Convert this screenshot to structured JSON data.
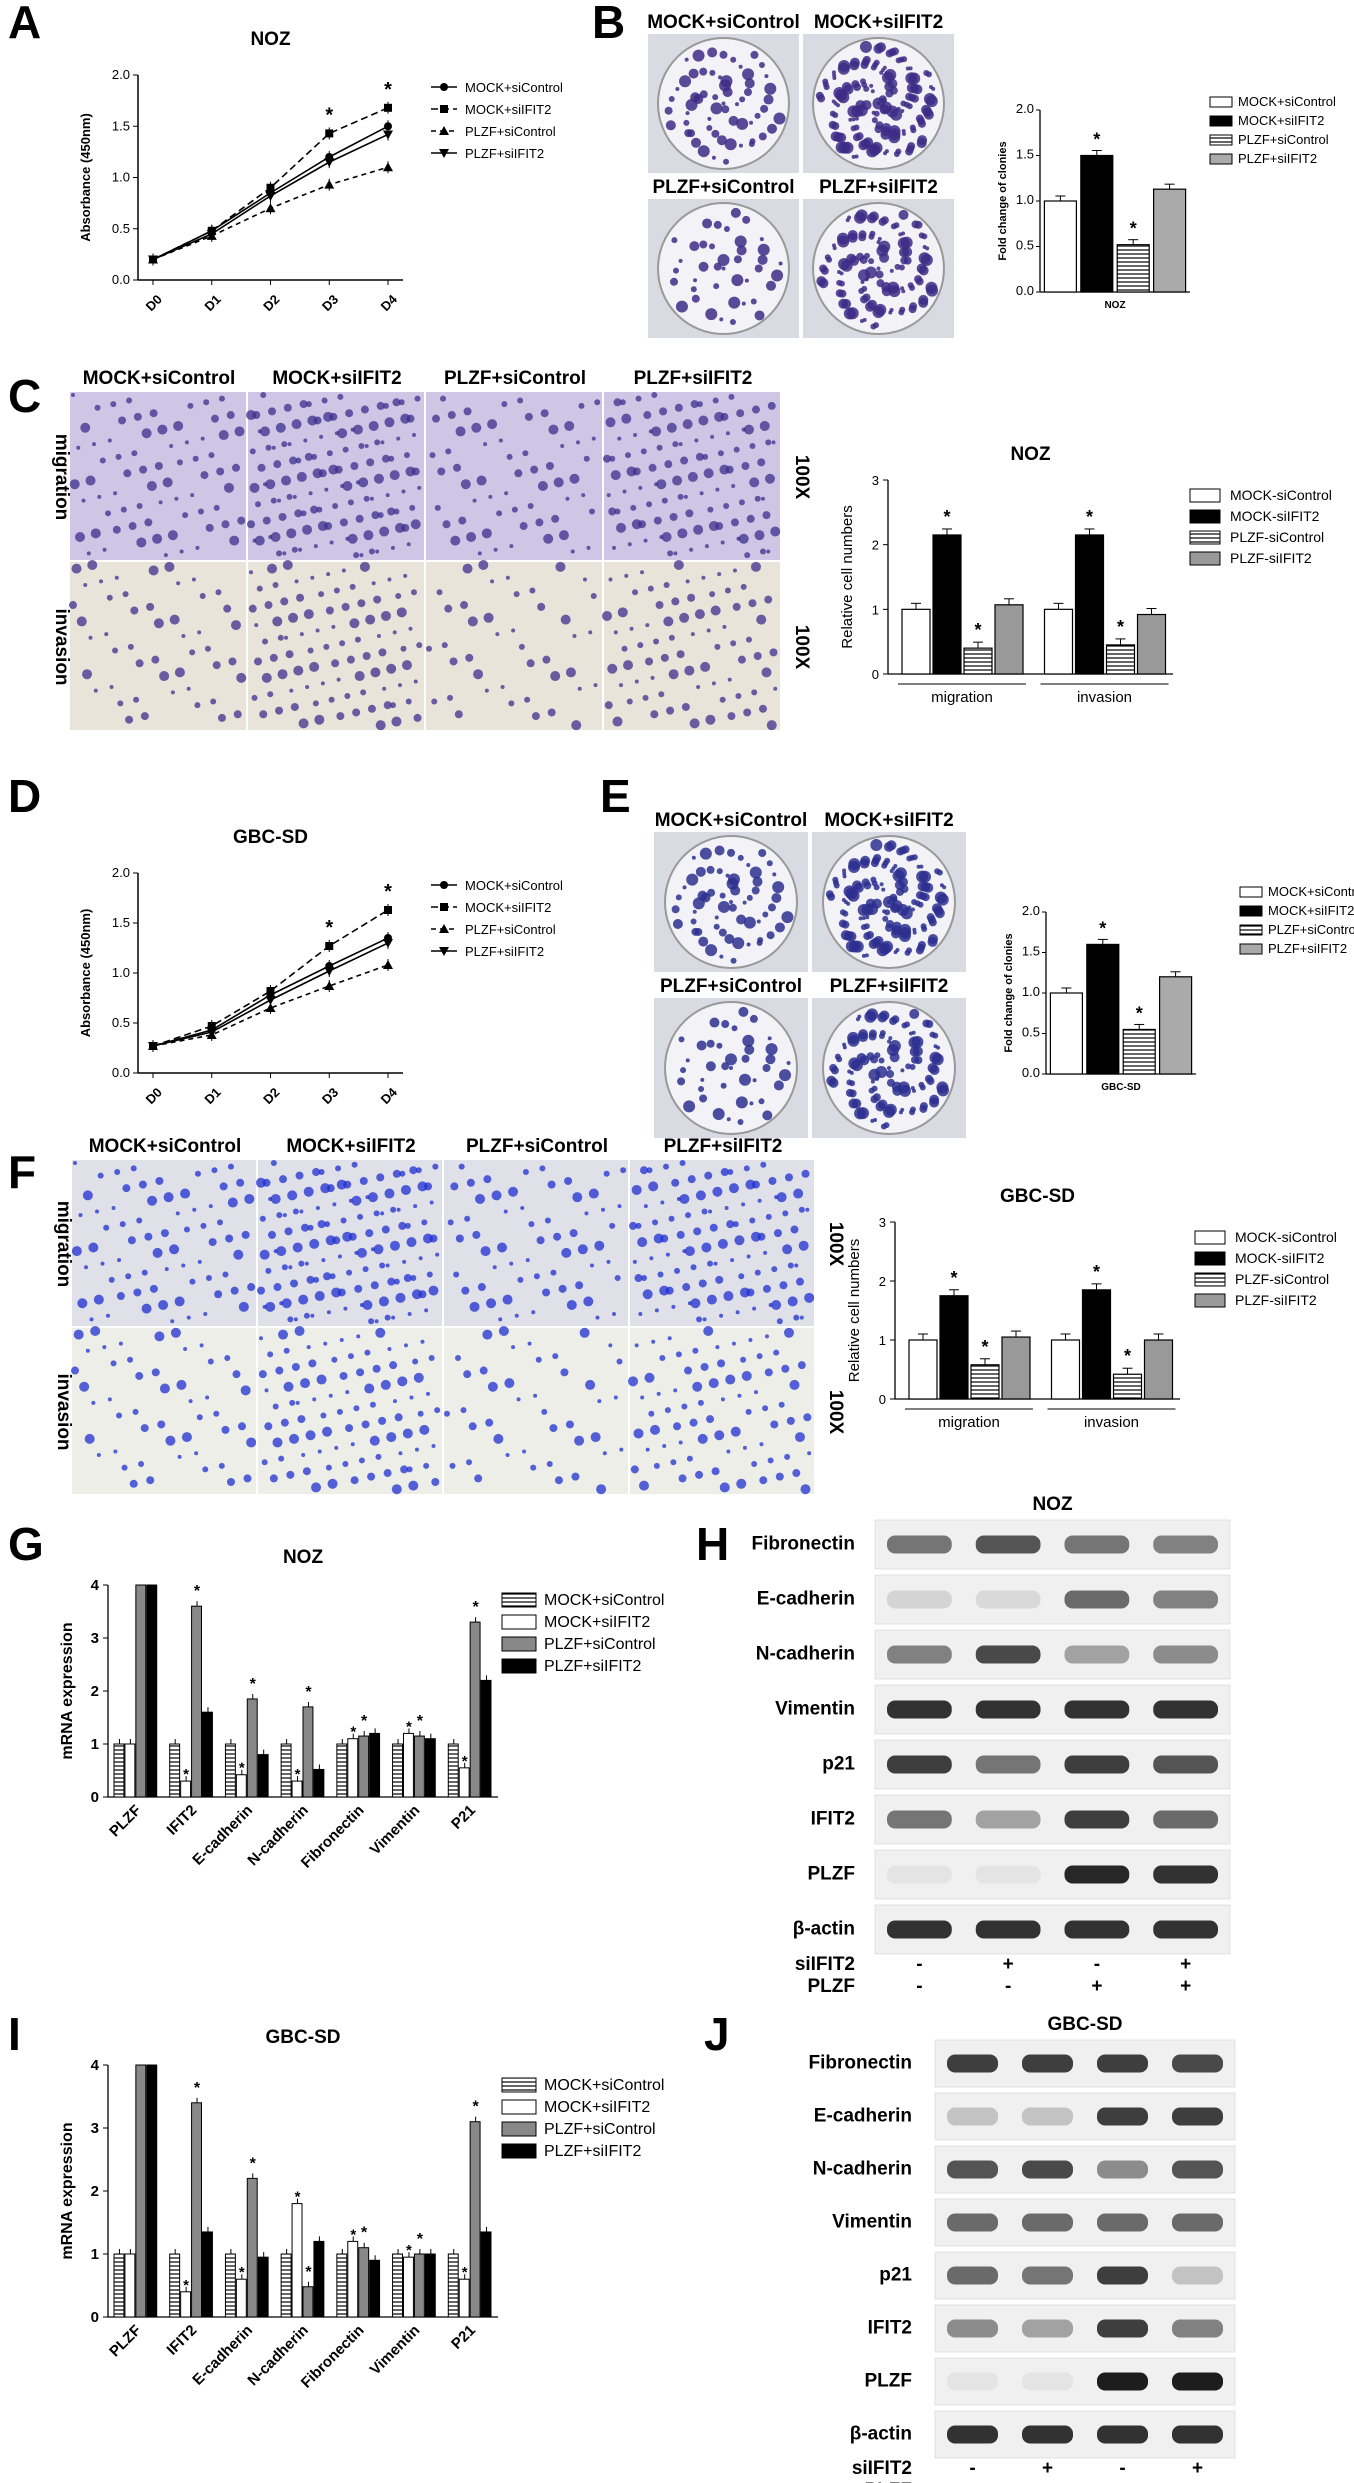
{
  "panels": {
    "A": "A",
    "B": "B",
    "C": "C",
    "D": "D",
    "E": "E",
    "F": "F",
    "G": "G",
    "H": "H",
    "I": "I",
    "J": "J"
  },
  "growth": {
    "conditions": [
      "MOCK+siControl",
      "MOCK+siIFIT2",
      "PLZF+siControl",
      "PLZF+siIFIT2"
    ]
  },
  "colony": {
    "B_images": [
      "MOCK+siControl",
      "MOCK+siIFIT2",
      "PLZF+siControl",
      "PLZF+siIFIT2"
    ],
    "E_images": [
      "MOCK+siControl",
      "MOCK+siIFIT2",
      "PLZF+siControl",
      "PLZF+siIFIT2"
    ]
  },
  "transwell": {
    "C_columns": [
      "MOCK+siControl",
      "MOCK+siIFIT2",
      "PLZF+siControl",
      "PLZF+siIFIT2"
    ],
    "F_columns": [
      "MOCK+siControl",
      "MOCK+siIFIT2",
      "PLZF+siControl",
      "PLZF+siIFIT2"
    ],
    "rows": [
      "migration",
      "invasion"
    ],
    "magnification": "100X"
  },
  "blots": {
    "H_title": "NOZ",
    "J_title": "GBC-SD",
    "proteins": [
      "Fibronectin",
      "E-cadherin",
      "N-cadherin",
      "Vimentin",
      "p21",
      "IFIT2",
      "PLZF",
      "β-actin"
    ],
    "siIFIT2_label": "siIFIT2",
    "PLZF_label": "PLZF",
    "siIFIT2_signs": [
      "-",
      "+",
      "-",
      "+"
    ],
    "PLZF_signs": [
      "-",
      "-",
      "+",
      "+"
    ]
  },
  "chart_data": [
    {
      "id": "A",
      "type": "line",
      "title": "NOZ",
      "xlabel": "",
      "ylabel": "Absorbance (450nm)",
      "x": [
        "D0",
        "D1",
        "D2",
        "D3",
        "D4"
      ],
      "ylim": [
        0,
        2.0
      ],
      "yticks": [
        "0.0",
        "0.5",
        "1.0",
        "1.5",
        "2.0"
      ],
      "series": [
        {
          "name": "MOCK+siControl",
          "values": [
            0.2,
            0.48,
            0.85,
            1.2,
            1.5
          ]
        },
        {
          "name": "MOCK+siIFIT2",
          "values": [
            0.2,
            0.48,
            0.9,
            1.43,
            1.68
          ]
        },
        {
          "name": "PLZF+siControl",
          "values": [
            0.2,
            0.43,
            0.7,
            0.93,
            1.1
          ]
        },
        {
          "name": "PLZF+siIFIT2",
          "values": [
            0.2,
            0.45,
            0.82,
            1.15,
            1.42
          ]
        }
      ],
      "annotations": [
        "*",
        "*"
      ]
    },
    {
      "id": "B",
      "type": "bar",
      "title": "",
      "xlabel": "NOZ",
      "ylabel": "Fold change of clonies",
      "ylim": [
        0,
        2.0
      ],
      "yticks": [
        "0.0",
        "0.5",
        "1.0",
        "1.5",
        "2.0"
      ],
      "categories": [
        "MOCK+siControl",
        "MOCK+siIFIT2",
        "PLZF+siControl",
        "PLZF+siIFIT2"
      ],
      "values": [
        1.0,
        1.5,
        0.52,
        1.13
      ],
      "annotations": [
        "",
        "*",
        "*",
        ""
      ]
    },
    {
      "id": "C",
      "type": "bar",
      "title": "NOZ",
      "xlabel": "",
      "ylabel": "Relative cell numbers",
      "ylim": [
        0,
        3
      ],
      "yticks": [
        "0",
        "1",
        "2",
        "3"
      ],
      "categories": [
        "migration",
        "invasion"
      ],
      "series": [
        {
          "name": "MOCK-siControl",
          "values": [
            1.0,
            1.0
          ]
        },
        {
          "name": "MOCK-siIFIT2",
          "values": [
            2.15,
            2.15
          ]
        },
        {
          "name": "PLZF-siControl",
          "values": [
            0.4,
            0.45
          ]
        },
        {
          "name": "PLZF-siIFIT2",
          "values": [
            1.07,
            0.92
          ]
        }
      ],
      "annotations": [
        "*",
        "*",
        "*",
        "*"
      ]
    },
    {
      "id": "D",
      "type": "line",
      "title": "GBC-SD",
      "xlabel": "",
      "ylabel": "Absorbance (450nm)",
      "x": [
        "D0",
        "D1",
        "D2",
        "D3",
        "D4"
      ],
      "ylim": [
        0,
        2.0
      ],
      "yticks": [
        "0.0",
        "0.5",
        "1.0",
        "1.5",
        "2.0"
      ],
      "series": [
        {
          "name": "MOCK+siControl",
          "values": [
            0.27,
            0.43,
            0.78,
            1.07,
            1.35
          ]
        },
        {
          "name": "MOCK+siIFIT2",
          "values": [
            0.27,
            0.47,
            0.82,
            1.27,
            1.63
          ]
        },
        {
          "name": "PLZF+siControl",
          "values": [
            0.27,
            0.38,
            0.65,
            0.87,
            1.08
          ]
        },
        {
          "name": "PLZF+siIFIT2",
          "values": [
            0.27,
            0.41,
            0.73,
            1.02,
            1.3
          ]
        }
      ],
      "annotations": [
        "*",
        "*"
      ]
    },
    {
      "id": "E",
      "type": "bar",
      "title": "",
      "xlabel": "GBC-SD",
      "ylabel": "Fold change of clonies",
      "ylim": [
        0,
        2.0
      ],
      "yticks": [
        "0.0",
        "0.5",
        "1.0",
        "1.5",
        "2.0"
      ],
      "categories": [
        "MOCK+siControl",
        "MOCK+siIFIT2",
        "PLZF+siControl",
        "PLZF+siIFIT2"
      ],
      "values": [
        1.0,
        1.6,
        0.55,
        1.2
      ],
      "annotations": [
        "",
        "*",
        "*",
        ""
      ]
    },
    {
      "id": "F",
      "type": "bar",
      "title": "GBC-SD",
      "xlabel": "",
      "ylabel": "Relative cell numbers",
      "ylim": [
        0,
        3
      ],
      "yticks": [
        "0",
        "1",
        "2",
        "3"
      ],
      "categories": [
        "migration",
        "invasion"
      ],
      "series": [
        {
          "name": "MOCK-siControl",
          "values": [
            1.0,
            1.0
          ]
        },
        {
          "name": "MOCK-siIFIT2",
          "values": [
            1.75,
            1.85
          ]
        },
        {
          "name": "PLZF-siControl",
          "values": [
            0.58,
            0.42
          ]
        },
        {
          "name": "PLZF-siIFIT2",
          "values": [
            1.05,
            1.0
          ]
        }
      ],
      "annotations": [
        "*",
        "*",
        "*",
        "*"
      ]
    },
    {
      "id": "G",
      "type": "bar",
      "title": "NOZ",
      "xlabel": "",
      "ylabel": "mRNA expression",
      "ylim": [
        0,
        4
      ],
      "yticks": [
        "0",
        "1",
        "2",
        "3",
        "4"
      ],
      "categories": [
        "PLZF",
        "IFIT2",
        "E-cadherin",
        "N-cadherin",
        "Fibronectin",
        "Vimentin",
        "P21"
      ],
      "series": [
        {
          "name": "MOCK+siControl",
          "values": [
            1.0,
            1.0,
            1.0,
            1.0,
            1.0,
            1.0,
            1.0
          ]
        },
        {
          "name": "MOCK+siIFIT2",
          "values": [
            1.0,
            0.3,
            0.42,
            0.3,
            1.1,
            1.2,
            0.55
          ]
        },
        {
          "name": "PLZF+siControl",
          "values": [
            4.0,
            3.6,
            1.85,
            1.7,
            1.15,
            1.15,
            3.3
          ]
        },
        {
          "name": "PLZF+siIFIT2",
          "values": [
            4.0,
            1.6,
            0.8,
            0.52,
            1.2,
            1.1,
            2.2
          ]
        }
      ],
      "annotations": [
        "*",
        "*",
        "*",
        "*",
        "*",
        "*",
        "*",
        "*"
      ]
    },
    {
      "id": "I",
      "type": "bar",
      "title": "GBC-SD",
      "xlabel": "",
      "ylabel": "mRNA expression",
      "ylim": [
        0,
        4
      ],
      "yticks": [
        "0",
        "1",
        "2",
        "3",
        "4"
      ],
      "categories": [
        "PLZF",
        "IFIT2",
        "E-cadherin",
        "N-cadherin",
        "Fibronectin",
        "Vimentin",
        "P21"
      ],
      "series": [
        {
          "name": "MOCK+siControl",
          "values": [
            1.0,
            1.0,
            1.0,
            1.0,
            1.0,
            1.0,
            1.0
          ]
        },
        {
          "name": "MOCK+siIFIT2",
          "values": [
            1.0,
            0.4,
            0.6,
            1.8,
            1.2,
            0.95,
            0.6
          ]
        },
        {
          "name": "PLZF+siControl",
          "values": [
            4.0,
            3.4,
            2.2,
            0.48,
            1.1,
            1.0,
            3.1
          ]
        },
        {
          "name": "PLZF+siIFIT2",
          "values": [
            4.0,
            1.35,
            0.95,
            1.2,
            0.9,
            1.0,
            1.35
          ]
        }
      ],
      "annotations": [
        "*",
        "*",
        "*",
        "*",
        "*",
        "*",
        "*",
        "*"
      ]
    }
  ]
}
